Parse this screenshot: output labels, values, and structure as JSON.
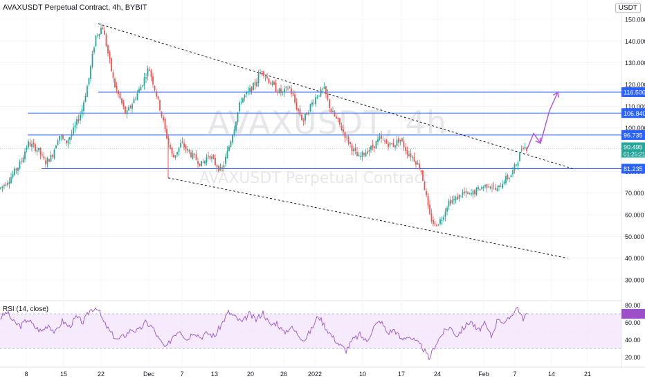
{
  "header": {
    "title": "AVAXUSDT Perpetual Contract, 4h, BYBIT",
    "currency": "USDT"
  },
  "watermark": {
    "symbol": "AVAXUSDT, 4h",
    "description": "AVAXUSDT Perpetual Contract"
  },
  "rsi": {
    "label": "RSI (14, close)",
    "ticks": [
      "80.00",
      "60.00",
      "40.00",
      "20.00"
    ]
  },
  "colors": {
    "up": "#26a69a",
    "down": "#ef5350",
    "level_line": "#2962ff",
    "projection": "#b15cd8",
    "rsi_line": "#9c4fc9",
    "rsi_band": "#f3e6fb"
  },
  "chart_data": {
    "type": "candlestick",
    "y_axis_ticks": [
      "150.000",
      "140.000",
      "130.000",
      "120.000",
      "110.000",
      "100.000",
      "80.000",
      "70.000",
      "60.000",
      "50.000",
      "40.000",
      "30.000"
    ],
    "ylim": [
      23,
      150
    ],
    "x_axis_ticks": [
      "8",
      "15",
      "22",
      "Dec",
      "7",
      "13",
      "20",
      "26",
      "2022",
      "10",
      "17",
      "24",
      "Feb",
      "7",
      "14",
      "21"
    ],
    "price_path": [
      [
        0,
        72
      ],
      [
        15,
        77
      ],
      [
        30,
        84
      ],
      [
        40,
        93
      ],
      [
        55,
        90
      ],
      [
        65,
        84
      ],
      [
        75,
        87
      ],
      [
        85,
        97
      ],
      [
        95,
        93
      ],
      [
        105,
        98
      ],
      [
        118,
        108
      ],
      [
        128,
        122
      ],
      [
        138,
        142
      ],
      [
        148,
        147
      ],
      [
        155,
        136
      ],
      [
        165,
        120
      ],
      [
        175,
        112
      ],
      [
        182,
        106
      ],
      [
        192,
        112
      ],
      [
        205,
        120
      ],
      [
        215,
        128
      ],
      [
        222,
        120
      ],
      [
        232,
        108
      ],
      [
        240,
        97
      ],
      [
        250,
        86
      ],
      [
        262,
        93
      ],
      [
        272,
        89
      ],
      [
        282,
        86
      ],
      [
        292,
        83
      ],
      [
        302,
        88
      ],
      [
        310,
        84
      ],
      [
        320,
        80
      ],
      [
        328,
        88
      ],
      [
        338,
        100
      ],
      [
        348,
        113
      ],
      [
        358,
        116
      ],
      [
        368,
        120
      ],
      [
        378,
        127
      ],
      [
        388,
        122
      ],
      [
        398,
        118
      ],
      [
        408,
        116
      ],
      [
        418,
        119
      ],
      [
        428,
        110
      ],
      [
        438,
        103
      ],
      [
        448,
        110
      ],
      [
        458,
        115
      ],
      [
        468,
        118
      ],
      [
        478,
        108
      ],
      [
        488,
        103
      ],
      [
        498,
        97
      ],
      [
        508,
        91
      ],
      [
        518,
        86
      ],
      [
        528,
        89
      ],
      [
        538,
        91
      ],
      [
        548,
        95
      ],
      [
        558,
        93
      ],
      [
        568,
        92
      ],
      [
        578,
        95
      ],
      [
        588,
        89
      ],
      [
        598,
        86
      ],
      [
        608,
        81
      ],
      [
        615,
        70
      ],
      [
        620,
        60
      ],
      [
        628,
        55
      ],
      [
        638,
        58
      ],
      [
        648,
        66
      ],
      [
        658,
        67
      ],
      [
        668,
        70
      ],
      [
        678,
        69
      ],
      [
        688,
        71
      ],
      [
        698,
        73
      ],
      [
        708,
        74
      ],
      [
        718,
        71
      ],
      [
        728,
        76
      ],
      [
        738,
        78
      ],
      [
        748,
        85
      ],
      [
        755,
        92
      ],
      [
        762,
        90.5
      ]
    ],
    "horizontal_levels": [
      {
        "value": 116.5,
        "label": "116.500"
      },
      {
        "value": 106.84,
        "label": "106.840"
      },
      {
        "value": 96.735,
        "label": "96.735"
      },
      {
        "value": 81.235,
        "label": "81.235"
      }
    ],
    "last_price": {
      "value": 90.495,
      "label": "90.495",
      "countdown": "01:25:21"
    },
    "channel_top": {
      "from_price": 148,
      "to_price": 81
    },
    "channel_bottom": {
      "from_price": 77,
      "to_price": 40
    },
    "projection_path": [
      90.5,
      97.5,
      93,
      108,
      116.5
    ],
    "rsi_ylim": [
      15,
      82
    ],
    "rsi_overbought": 70,
    "rsi_oversold": 30,
    "rsi_series": [
      [
        0,
        65
      ],
      [
        10,
        72
      ],
      [
        20,
        60
      ],
      [
        30,
        56
      ],
      [
        40,
        64
      ],
      [
        50,
        55
      ],
      [
        60,
        50
      ],
      [
        70,
        58
      ],
      [
        80,
        48
      ],
      [
        90,
        62
      ],
      [
        100,
        55
      ],
      [
        110,
        66
      ],
      [
        120,
        60
      ],
      [
        130,
        74
      ],
      [
        140,
        78
      ],
      [
        150,
        60
      ],
      [
        160,
        48
      ],
      [
        170,
        40
      ],
      [
        180,
        45
      ],
      [
        190,
        52
      ],
      [
        200,
        50
      ],
      [
        210,
        60
      ],
      [
        220,
        55
      ],
      [
        230,
        40
      ],
      [
        240,
        30
      ],
      [
        250,
        45
      ],
      [
        260,
        52
      ],
      [
        270,
        40
      ],
      [
        280,
        50
      ],
      [
        290,
        43
      ],
      [
        300,
        48
      ],
      [
        310,
        44
      ],
      [
        320,
        58
      ],
      [
        330,
        72
      ],
      [
        340,
        66
      ],
      [
        350,
        60
      ],
      [
        360,
        70
      ],
      [
        370,
        63
      ],
      [
        380,
        72
      ],
      [
        390,
        57
      ],
      [
        400,
        60
      ],
      [
        410,
        48
      ],
      [
        420,
        55
      ],
      [
        430,
        47
      ],
      [
        440,
        40
      ],
      [
        450,
        52
      ],
      [
        460,
        68
      ],
      [
        470,
        55
      ],
      [
        480,
        44
      ],
      [
        490,
        35
      ],
      [
        500,
        28
      ],
      [
        510,
        40
      ],
      [
        520,
        46
      ],
      [
        530,
        38
      ],
      [
        540,
        55
      ],
      [
        550,
        62
      ],
      [
        560,
        48
      ],
      [
        570,
        52
      ],
      [
        580,
        40
      ],
      [
        590,
        45
      ],
      [
        600,
        38
      ],
      [
        610,
        32
      ],
      [
        620,
        18
      ],
      [
        630,
        36
      ],
      [
        640,
        48
      ],
      [
        650,
        55
      ],
      [
        660,
        45
      ],
      [
        670,
        54
      ],
      [
        680,
        62
      ],
      [
        690,
        50
      ],
      [
        700,
        58
      ],
      [
        710,
        44
      ],
      [
        720,
        66
      ],
      [
        730,
        58
      ],
      [
        740,
        70
      ],
      [
        748,
        78
      ],
      [
        755,
        64
      ],
      [
        762,
        70
      ]
    ]
  }
}
